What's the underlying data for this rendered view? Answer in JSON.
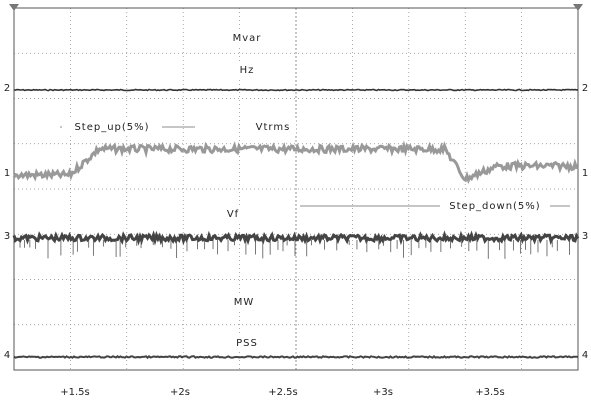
{
  "labels": {
    "mvar": "Mvar",
    "hz": "Hz",
    "vtrms": "Vtrms",
    "step_up": "Step_up(5%)",
    "step_down": "Step_down(5%)",
    "vf": "Vf",
    "mw": "MW",
    "pss": "PSS"
  },
  "channel_markers": {
    "left": [
      "2",
      "1",
      "3",
      "4"
    ],
    "right": [
      "2",
      "1",
      "3",
      "4"
    ]
  },
  "time_labels": [
    "+1.5s",
    "+2s",
    "+2.5s",
    "+3s",
    "+3.5s"
  ]
}
